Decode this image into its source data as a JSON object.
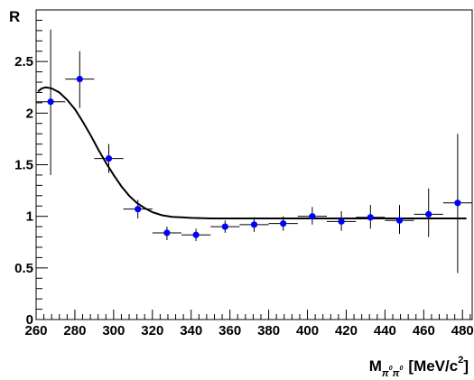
{
  "chart_data": {
    "type": "scatter",
    "title": "",
    "ylabel": "R",
    "xlabel": {
      "main": "M",
      "sub1": "π",
      "sup1": "0",
      "sub2": "π",
      "sup2": "0",
      "unit": "[MeV/c",
      "unit_sup": "2",
      "unit_close": "]"
    },
    "xlim": [
      260,
      485
    ],
    "ylim": [
      0,
      3.0
    ],
    "x_ticks": [
      260,
      280,
      300,
      320,
      340,
      360,
      380,
      400,
      420,
      440,
      460,
      480
    ],
    "y_ticks": [
      0,
      0.5,
      1,
      1.5,
      2,
      2.5
    ],
    "y_tick_labels": [
      "0",
      "0.5",
      "1",
      "1.5",
      "2",
      "2.5"
    ],
    "grid": false,
    "marker_color": "#0000ff",
    "series": [
      {
        "points": [
          {
            "x": 267.5,
            "xerr": 7.5,
            "y": 2.11,
            "ylo": 1.4,
            "yhi": 2.81
          },
          {
            "x": 282.5,
            "xerr": 7.5,
            "y": 2.33,
            "ylo": 2.05,
            "yhi": 2.6
          },
          {
            "x": 297.5,
            "xerr": 7.5,
            "y": 1.56,
            "ylo": 1.42,
            "yhi": 1.7
          },
          {
            "x": 312.5,
            "xerr": 7.5,
            "y": 1.07,
            "ylo": 0.98,
            "yhi": 1.16
          },
          {
            "x": 327.5,
            "xerr": 7.5,
            "y": 0.84,
            "ylo": 0.77,
            "yhi": 0.9
          },
          {
            "x": 342.5,
            "xerr": 7.5,
            "y": 0.82,
            "ylo": 0.76,
            "yhi": 0.88
          },
          {
            "x": 357.5,
            "xerr": 7.5,
            "y": 0.9,
            "ylo": 0.84,
            "yhi": 0.96
          },
          {
            "x": 372.5,
            "xerr": 7.5,
            "y": 0.92,
            "ylo": 0.85,
            "yhi": 0.99
          },
          {
            "x": 387.5,
            "xerr": 7.5,
            "y": 0.93,
            "ylo": 0.86,
            "yhi": 1.0
          },
          {
            "x": 402.5,
            "xerr": 7.5,
            "y": 1.0,
            "ylo": 0.92,
            "yhi": 1.09
          },
          {
            "x": 417.5,
            "xerr": 7.5,
            "y": 0.95,
            "ylo": 0.86,
            "yhi": 1.05
          },
          {
            "x": 432.5,
            "xerr": 7.5,
            "y": 0.99,
            "ylo": 0.88,
            "yhi": 1.11
          },
          {
            "x": 447.5,
            "xerr": 7.5,
            "y": 0.96,
            "ylo": 0.83,
            "yhi": 1.11
          },
          {
            "x": 462.5,
            "xerr": 7.5,
            "y": 1.02,
            "ylo": 0.8,
            "yhi": 1.27
          },
          {
            "x": 477.5,
            "xerr": 7.5,
            "y": 1.13,
            "ylo": 0.45,
            "yhi": 1.8
          }
        ]
      }
    ],
    "fit_curve": {
      "x": [
        261,
        263,
        265,
        268,
        272,
        276,
        280,
        284,
        288,
        292,
        296,
        300,
        304,
        308,
        312,
        316,
        320,
        325,
        330,
        335,
        340,
        350,
        360,
        380,
        400,
        420,
        440,
        460,
        482
      ],
      "y": [
        2.21,
        2.24,
        2.25,
        2.24,
        2.2,
        2.13,
        2.04,
        1.92,
        1.79,
        1.65,
        1.52,
        1.4,
        1.29,
        1.2,
        1.13,
        1.08,
        1.04,
        1.01,
        0.995,
        0.99,
        0.985,
        0.98,
        0.98,
        0.98,
        0.98,
        0.98,
        0.98,
        0.98,
        0.98
      ]
    }
  }
}
